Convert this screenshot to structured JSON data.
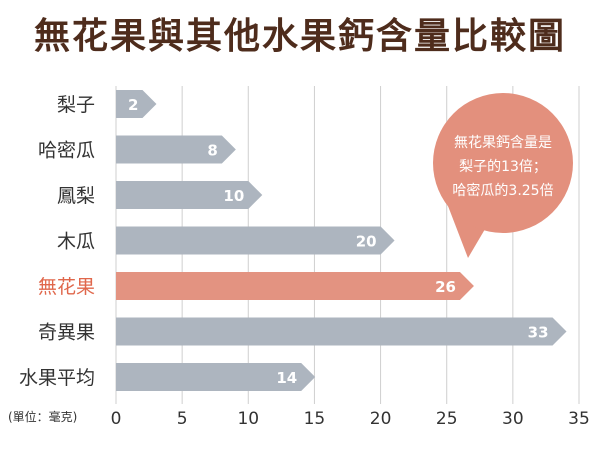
{
  "chart_data": {
    "type": "bar",
    "orientation": "horizontal",
    "title": "無花果與其他水果鈣含量比較圖",
    "unit_label": "(單位：毫克)",
    "categories": [
      "梨子",
      "哈密瓜",
      "鳳梨",
      "木瓜",
      "無花果",
      "奇異果",
      "水果平均"
    ],
    "values": [
      2,
      8,
      10,
      20,
      26,
      33,
      14
    ],
    "value_labels": [
      "2",
      "8",
      "10",
      "20",
      "26",
      "33",
      "14"
    ],
    "highlight_category": "無花果",
    "xlim": [
      0,
      35
    ],
    "xticks": [
      "0",
      "5",
      "10",
      "15",
      "20",
      "25",
      "30",
      "35"
    ],
    "grid": true,
    "annotation": [
      "無花果鈣含量是",
      "梨子的13倍；",
      "哈密瓜的3.25倍"
    ],
    "colors": {
      "bar": "#adb5bf",
      "highlight_bar": "#e39381",
      "highlight_text": "#e0674b",
      "title": "#4e2c1c",
      "bubble": "#e3907d",
      "grid": "#cfcfcf",
      "text": "#333333"
    }
  }
}
